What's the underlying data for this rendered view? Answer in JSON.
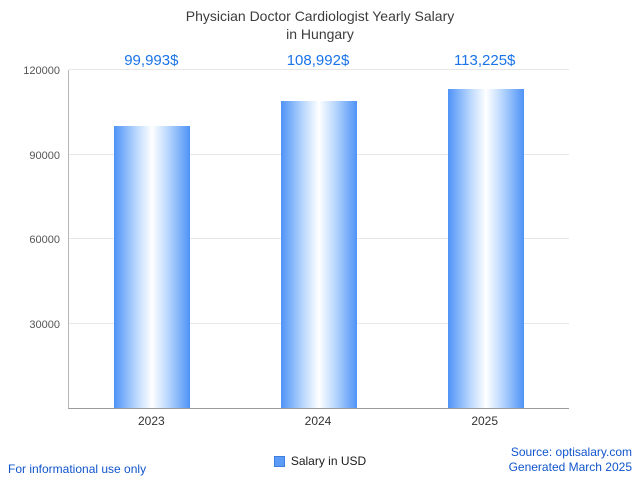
{
  "title": {
    "line1": "Physician Doctor Cardiologist Yearly Salary",
    "line2": "in Hungary"
  },
  "chart_data": {
    "type": "bar",
    "title": "Physician Doctor Cardiologist Yearly Salary in Hungary",
    "categories": [
      "2023",
      "2024",
      "2025"
    ],
    "values": [
      99993,
      108992,
      113225
    ],
    "value_labels": [
      "99,993$",
      "108,992$",
      "113,225$"
    ],
    "xlabel": "",
    "ylabel": "",
    "ylim": [
      0,
      120000
    ],
    "yticks": [
      30000,
      60000,
      90000,
      120000
    ],
    "grid": true,
    "legend_label": "Salary in USD",
    "legend_position": "bottom"
  },
  "footer": {
    "left": "For informational use only",
    "source": "Source: optisalary.com",
    "generated": "Generated March 2025"
  },
  "colors": {
    "accent": "#1a73e8",
    "bar_fill": "#4f93f7",
    "link": "#1155cc",
    "title_text": "#3c3c3c",
    "gridline": "#e7e7e7"
  }
}
